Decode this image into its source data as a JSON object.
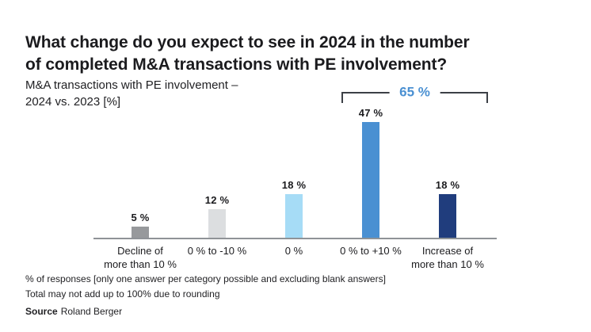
{
  "title": "What change do you expect to see in 2024 in the number\nof completed M&A transactions with PE involvement?",
  "subtitle": "M&A transactions with PE involvement –\n2024 vs. 2023 [%]",
  "chart_data": {
    "type": "bar",
    "categories": [
      "Decline of more than 10 %",
      "0 % to -10 %",
      "0 %",
      "0 % to +10 %",
      "Increase of more than 10 %"
    ],
    "category_lines": [
      [
        "Decline of",
        "more than 10 %"
      ],
      [
        "0 % to -10 %"
      ],
      [
        "0 %"
      ],
      [
        "0 % to +10 %"
      ],
      [
        "Increase of",
        "more than 10 %"
      ]
    ],
    "values": [
      5,
      12,
      18,
      47,
      18
    ],
    "value_labels": [
      "5 %",
      "12 %",
      "18 %",
      "47 %",
      "18 %"
    ],
    "bar_colors": [
      "#97999c",
      "#dcdee0",
      "#a6dcf6",
      "#4a90d2",
      "#203d7d"
    ],
    "bracket_label": "65 %",
    "bracket_label_color": "#4a90d2",
    "bracket_line_color": "#3c4046",
    "axis_line_color": "#8f9397",
    "ylim": [
      0,
      50
    ],
    "grid": false,
    "legend": "none",
    "title": "M&A transactions with PE involvement – 2024 vs. 2023 [%]",
    "xlabel": "",
    "ylabel": ""
  },
  "footnotes": [
    "% of responses [only one answer per category possible and excluding blank answers]",
    "Total may not add up to 100% due to rounding"
  ],
  "source": {
    "label": "Source",
    "value": "Roland Berger"
  }
}
